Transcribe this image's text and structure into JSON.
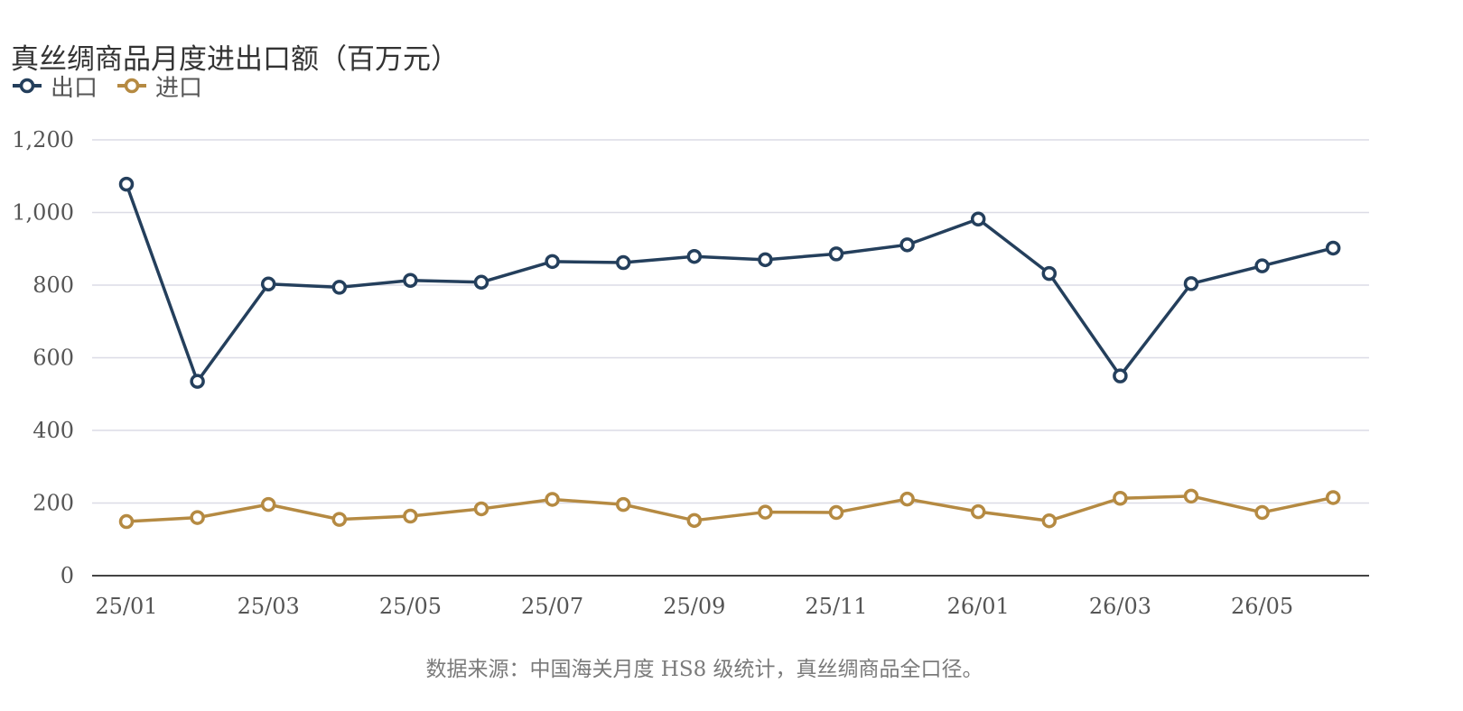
{
  "chart_data": {
    "type": "line",
    "title": "真丝绸商品月度进出口额（百万元）",
    "xlabel": "",
    "ylabel": "",
    "categories": [
      "25/01",
      "25/02",
      "25/03",
      "25/04",
      "25/05",
      "25/06",
      "25/07",
      "25/08",
      "25/09",
      "25/10",
      "25/11",
      "25/12",
      "26/01",
      "26/02",
      "26/03",
      "26/04",
      "26/05",
      "26/06"
    ],
    "x_tick_labels": [
      "25/01",
      "25/03",
      "25/05",
      "25/07",
      "25/09",
      "25/11",
      "26/01",
      "26/03",
      "26/05"
    ],
    "y_tick_labels": [
      "0",
      "200",
      "400",
      "600",
      "800",
      "1,000",
      "1,200"
    ],
    "ylim": [
      0,
      1200
    ],
    "grid": true,
    "legend_position": "top-left",
    "series": [
      {
        "name": "出口",
        "color": "#243f5c",
        "values": [
          1078,
          535,
          803,
          794,
          813,
          808,
          865,
          862,
          879,
          870,
          886,
          911,
          982,
          832,
          550,
          804,
          853,
          902
        ]
      },
      {
        "name": "进口",
        "color": "#b58a42",
        "values": [
          149,
          160,
          196,
          155,
          164,
          184,
          210,
          196,
          152,
          175,
          174,
          211,
          176,
          151,
          213,
          219,
          174,
          215
        ]
      }
    ],
    "caption": "数据来源：中国海关月度 HS8 级统计，真丝绸商品全口径。"
  }
}
